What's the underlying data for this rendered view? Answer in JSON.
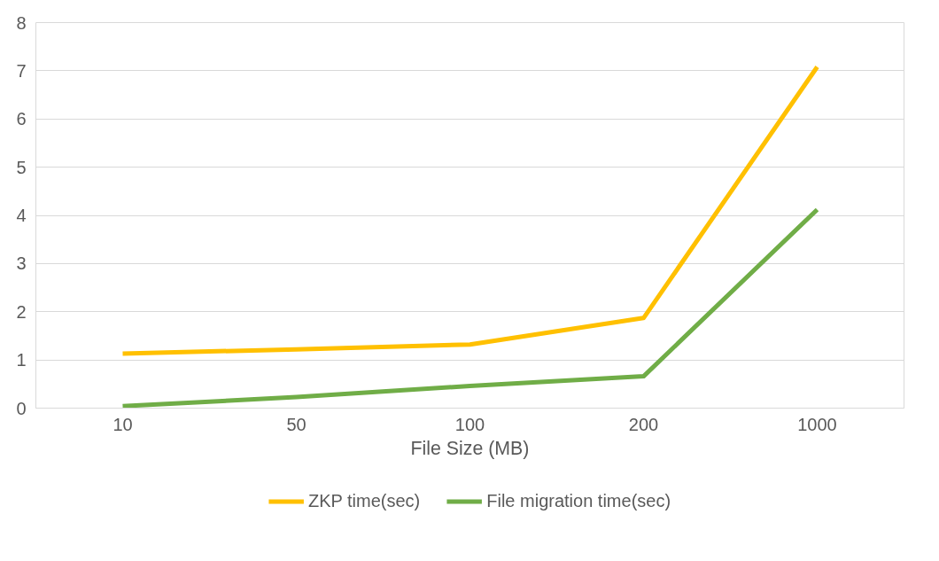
{
  "chart_data": {
    "type": "line",
    "xlabel": "File Size (MB)",
    "categories": [
      "10",
      "50",
      "100",
      "200",
      "1000"
    ],
    "series": [
      {
        "name": "ZKP time(sec)",
        "color": "#ffc000",
        "values": [
          1.13,
          1.22,
          1.32,
          1.87,
          7.08
        ]
      },
      {
        "name": "File migration time(sec)",
        "color": "#70ad47",
        "values": [
          0.04,
          0.23,
          0.46,
          0.66,
          4.12
        ]
      }
    ],
    "ylim": [
      0,
      8
    ],
    "yticks": [
      0,
      1,
      2,
      3,
      4,
      5,
      6,
      7,
      8
    ],
    "grid": "y",
    "legend": "bottom",
    "marker": "none",
    "line_style": "solid"
  }
}
